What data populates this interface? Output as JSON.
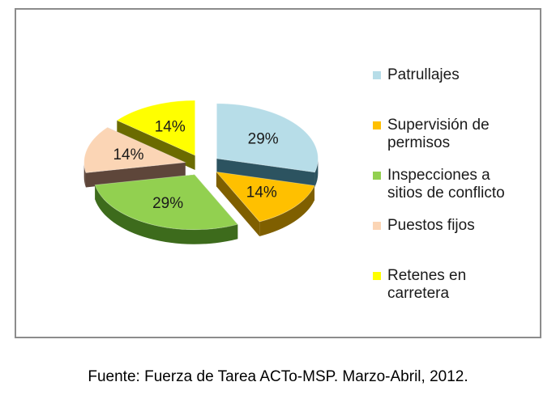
{
  "chart_data": {
    "type": "pie",
    "title": "",
    "categories": [
      "Patrullajes",
      "Supervisión de permisos",
      "Inspecciones a sitios de conflicto",
      "Puestos fijos",
      "Retenes en carretera"
    ],
    "values": [
      29,
      14,
      29,
      14,
      14
    ],
    "data_labels": [
      "29%",
      "14%",
      "29%",
      "14%",
      "14%"
    ],
    "legend": {
      "placement": "right",
      "entries": [
        {
          "lines": [
            "Patrullajes"
          ]
        },
        {
          "lines": [
            "Supervisión de",
            "permisos"
          ]
        },
        {
          "lines": [
            "Inspecciones a",
            "sitios de conflicto"
          ]
        },
        {
          "lines": [
            "Puestos fijos"
          ]
        },
        {
          "lines": [
            "Retenes en",
            "carretera"
          ]
        }
      ]
    },
    "colors": [
      "#b7dde8",
      "#ffc000",
      "#92d050",
      "#fbd5b5",
      "#ffff00"
    ],
    "side_colors": [
      "#2c5360",
      "#7f5f00",
      "#3d6b1c",
      "#5e463a",
      "#6b6b00"
    ],
    "style": "3d-exploded"
  },
  "source_note": "Fuente: Fuerza de Tarea ACTo-MSP. Marzo-Abril, 2012."
}
